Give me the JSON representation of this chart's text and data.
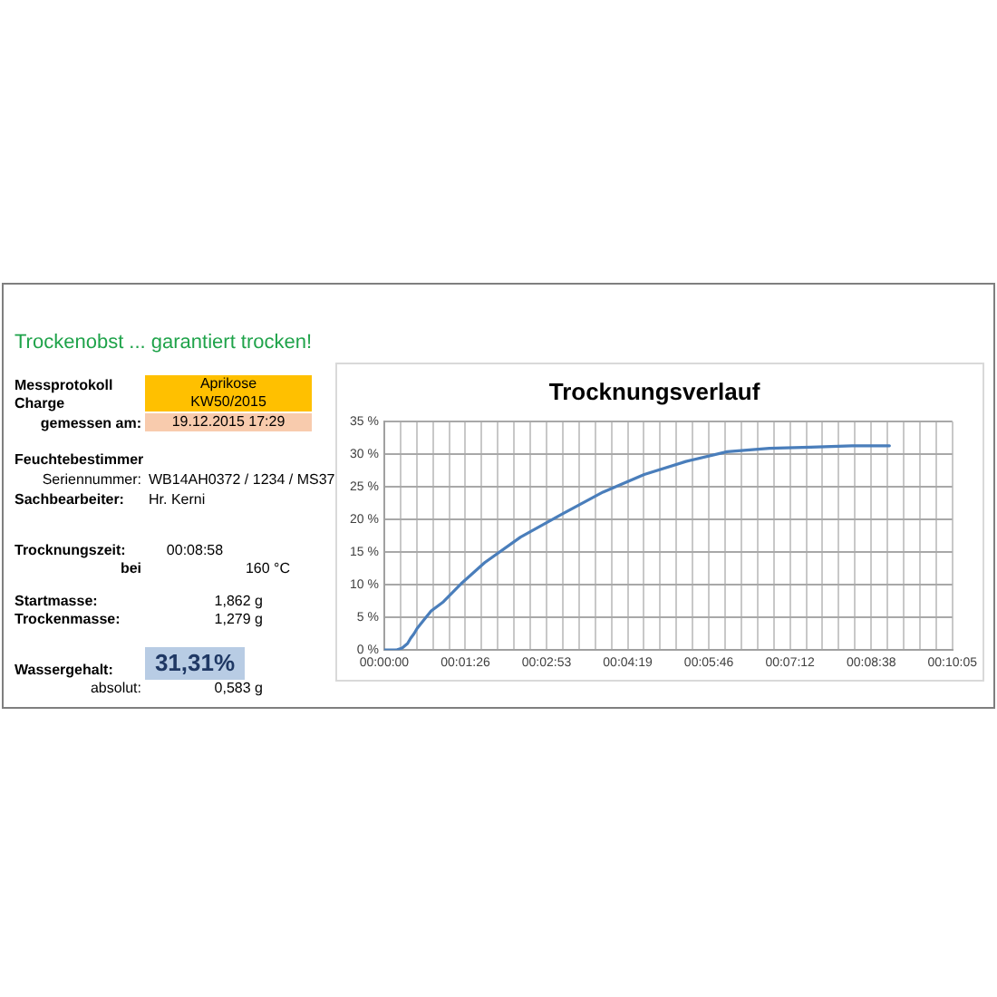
{
  "chart_data": [
    {
      "type": "other",
      "title": "Trockenobst ... garantiert trocken!",
      "annotations": [
        "Messprotokoll",
        "Aprikose",
        "Charge",
        "KW50/2015",
        "gemessen am:",
        "19.12.2015 17:29",
        "Feuchtebestimmer",
        "Seriennummer:",
        "WB14AH0372 / 1234 / MS37",
        "Sachbearbeiter:",
        "Hr. Kerni",
        "Trocknungszeit:",
        "00:08:58",
        "bei",
        "160 °C",
        "Startmasse:",
        "1,862 g",
        "Trockenmasse:",
        "1,279 g",
        "Wassergehalt:",
        "31,31%",
        "absolut:",
        "0,583 g"
      ]
    },
    {
      "type": "line",
      "title": "Trocknungsverlauf",
      "marker": "none",
      "line_style": "solid",
      "grid": true,
      "x": [
        0,
        0.0035,
        0.0053,
        0.0069,
        0.0078,
        0.0088,
        0.0097,
        0.0114,
        0.0139,
        0.0175,
        0.0228,
        0.0297,
        0.0403,
        0.0525,
        0.0647,
        0.0769,
        0.0892,
        0.1014,
        0.1139,
        0.1261,
        0.1383,
        0.1494
      ],
      "series": [
        {
          "color": "#4a7ebb",
          "values": [
            0,
            0,
            0.3,
            1.0,
            1.8,
            2.5,
            3.3,
            4.4,
            6.0,
            7.4,
            10.2,
            13.4,
            17.3,
            20.8,
            24.2,
            26.9,
            28.9,
            30.4,
            30.9,
            31.1,
            31.3,
            31.3
          ]
        }
      ],
      "xlim": [
        0,
        0.168
      ],
      "xticks": [
        {
          "value": 0,
          "label": "00:00:00"
        },
        {
          "value": 0.0048,
          "label": null
        },
        {
          "value": 0.0096,
          "label": null
        },
        {
          "value": 0.0144,
          "label": null
        },
        {
          "value": 0.0192,
          "label": null
        },
        {
          "value": 0.024,
          "label": "00:01:26"
        },
        {
          "value": 0.0288,
          "label": null
        },
        {
          "value": 0.0336,
          "label": null
        },
        {
          "value": 0.0384,
          "label": null
        },
        {
          "value": 0.0432,
          "label": null
        },
        {
          "value": 0.048,
          "label": "00:02:53"
        },
        {
          "value": 0.0528,
          "label": null
        },
        {
          "value": 0.0576,
          "label": null
        },
        {
          "value": 0.0624,
          "label": null
        },
        {
          "value": 0.0672,
          "label": null
        },
        {
          "value": 0.072,
          "label": "00:04:19"
        },
        {
          "value": 0.0768,
          "label": null
        },
        {
          "value": 0.0816,
          "label": null
        },
        {
          "value": 0.0864,
          "label": null
        },
        {
          "value": 0.0912,
          "label": null
        },
        {
          "value": 0.096,
          "label": "00:05:46"
        },
        {
          "value": 0.1008,
          "label": null
        },
        {
          "value": 0.1056,
          "label": null
        },
        {
          "value": 0.1104,
          "label": null
        },
        {
          "value": 0.1152,
          "label": null
        },
        {
          "value": 0.12,
          "label": "00:07:12"
        },
        {
          "value": 0.1248,
          "label": null
        },
        {
          "value": 0.1296,
          "label": null
        },
        {
          "value": 0.1344,
          "label": null
        },
        {
          "value": 0.1392,
          "label": null
        },
        {
          "value": 0.144,
          "label": "00:08:38"
        },
        {
          "value": 0.1488,
          "label": null
        },
        {
          "value": 0.1536,
          "label": null
        },
        {
          "value": 0.1584,
          "label": null
        },
        {
          "value": 0.1632,
          "label": null
        },
        {
          "value": 0.168,
          "label": "00:10:05"
        }
      ],
      "ylim": [
        0,
        35
      ],
      "yticks": [
        {
          "value": 0,
          "label": "0 %"
        },
        {
          "value": 5,
          "label": "5 %"
        },
        {
          "value": 10,
          "label": "10 %"
        },
        {
          "value": 15,
          "label": "15 %"
        },
        {
          "value": 20,
          "label": "20 %"
        },
        {
          "value": 25,
          "label": "25 %"
        },
        {
          "value": 30,
          "label": "30 %"
        },
        {
          "value": 35,
          "label": "35 %"
        }
      ]
    }
  ]
}
